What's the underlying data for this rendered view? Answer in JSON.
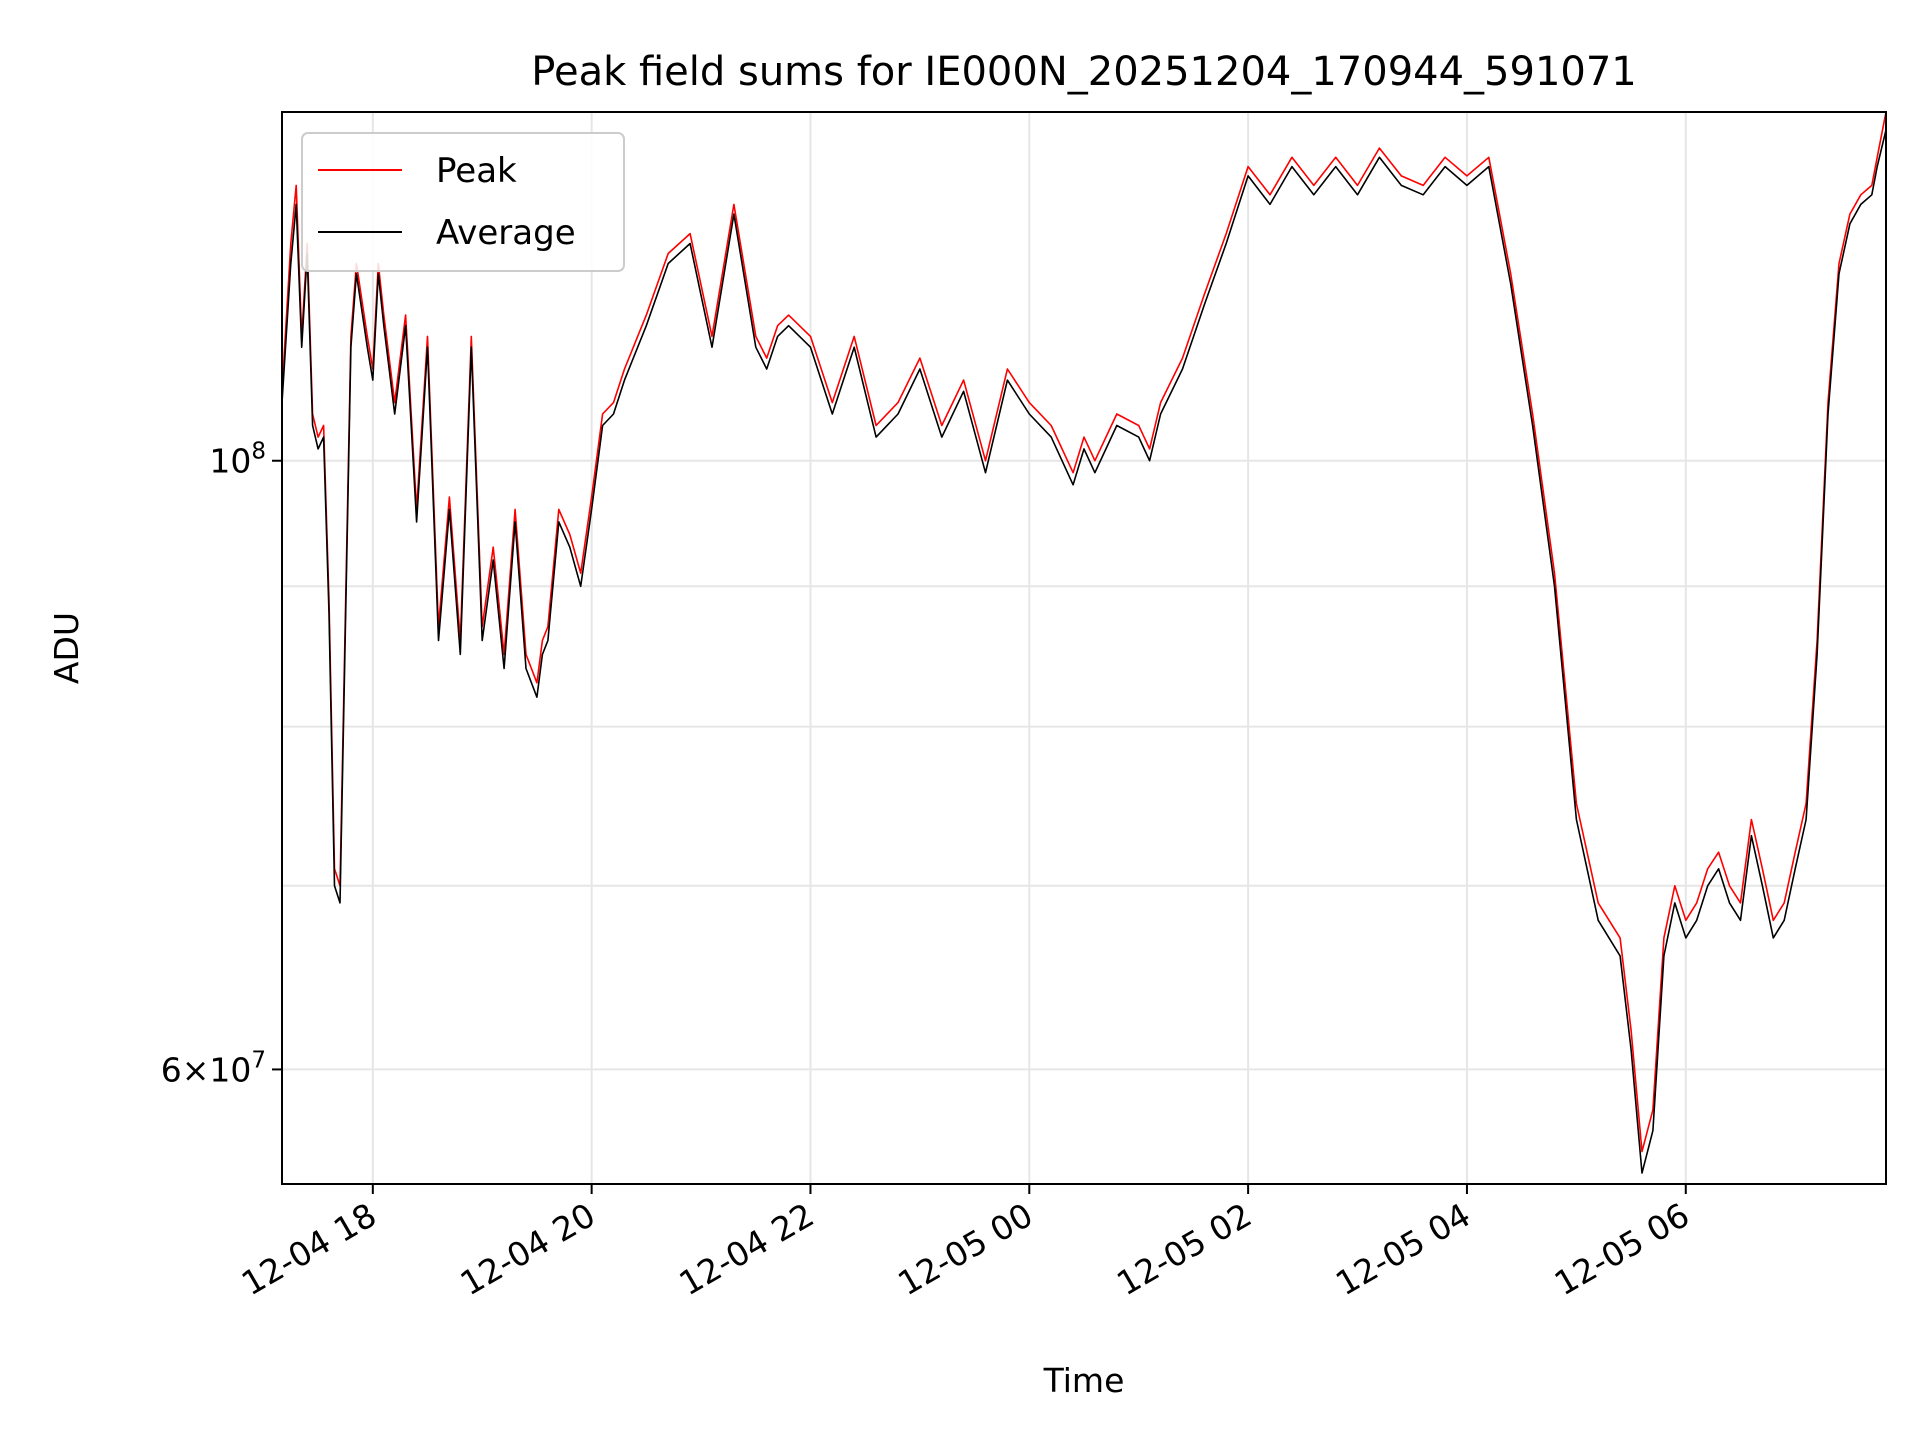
{
  "chart_data": {
    "type": "line",
    "title": "Peak field sums for IE000N_20251204_170944_591071",
    "xlabel": "Time",
    "ylabel": "ADU",
    "yscale": "log",
    "ylim": [
      54500000,
      134000000
    ],
    "xlim_hours": [
      -0.83,
      13.83
    ],
    "x_ticks": [
      {
        "hour": 0,
        "label": "12-04 18"
      },
      {
        "hour": 2,
        "label": "12-04 20"
      },
      {
        "hour": 4,
        "label": "12-04 22"
      },
      {
        "hour": 6,
        "label": "12-05 00"
      },
      {
        "hour": 8,
        "label": "12-05 02"
      },
      {
        "hour": 10,
        "label": "12-05 04"
      },
      {
        "hour": 12,
        "label": "12-05 06"
      }
    ],
    "y_ticks": [
      {
        "value": 100000000,
        "base": "10",
        "exp": "8"
      },
      {
        "value": 60000000,
        "base": "6×10",
        "exp": "7"
      }
    ],
    "y_minor_grid": [
      70000000,
      80000000,
      90000000
    ],
    "grid": true,
    "legend": {
      "position": "upper left",
      "entries": [
        "Peak",
        "Average"
      ]
    },
    "series_colors": {
      "Peak": "#ff0000",
      "Average": "#000000"
    },
    "series": [
      {
        "name": "Average",
        "color": "#000000",
        "x": [
          -0.83,
          -0.75,
          -0.7,
          -0.65,
          -0.6,
          -0.55,
          -0.5,
          -0.45,
          -0.4,
          -0.35,
          -0.3,
          -0.2,
          -0.15,
          -0.05,
          0.0,
          0.05,
          0.1,
          0.2,
          0.3,
          0.4,
          0.5,
          0.6,
          0.7,
          0.8,
          0.9,
          1.0,
          1.1,
          1.2,
          1.3,
          1.4,
          1.5,
          1.55,
          1.6,
          1.7,
          1.8,
          1.9,
          2.0,
          2.1,
          2.2,
          2.3,
          2.5,
          2.7,
          2.9,
          3.1,
          3.3,
          3.5,
          3.6,
          3.7,
          3.8,
          4.0,
          4.2,
          4.4,
          4.6,
          4.8,
          5.0,
          5.2,
          5.4,
          5.6,
          5.8,
          6.0,
          6.2,
          6.4,
          6.5,
          6.6,
          6.8,
          7.0,
          7.1,
          7.2,
          7.4,
          7.6,
          7.8,
          8.0,
          8.2,
          8.4,
          8.6,
          8.8,
          9.0,
          9.2,
          9.4,
          9.6,
          9.8,
          10.0,
          10.2,
          10.4,
          10.6,
          10.8,
          11.0,
          11.2,
          11.4,
          11.5,
          11.6,
          11.7,
          11.8,
          11.9,
          12.0,
          12.1,
          12.2,
          12.3,
          12.4,
          12.5,
          12.6,
          12.7,
          12.8,
          12.9,
          13.0,
          13.1,
          13.2,
          13.3,
          13.4,
          13.5,
          13.6,
          13.7,
          13.75,
          13.83
        ],
        "y": [
          105000000.0,
          118000000.0,
          124000000.0,
          110000000.0,
          119000000.0,
          103000000.0,
          101000000.0,
          102000000.0,
          88000000.0,
          70000000.0,
          69000000.0,
          110000000.0,
          117000000.0,
          110000000.0,
          107000000.0,
          117000000.0,
          112000000.0,
          104000000.0,
          112000000.0,
          95000000.0,
          110000000.0,
          86000000.0,
          96000000.0,
          85000000.0,
          110000000.0,
          86000000.0,
          92000000.0,
          84000000.0,
          95000000.0,
          84000000.0,
          82000000.0,
          85000000.0,
          86000000.0,
          95000000.0,
          93000000.0,
          90000000.0,
          96000000.0,
          103000000.0,
          104000000.0,
          107000000.0,
          112000000.0,
          118000000.0,
          120000000.0,
          110000000.0,
          123000000.0,
          110000000.0,
          108000000.0,
          111000000.0,
          112000000.0,
          110000000.0,
          104000000.0,
          110000000.0,
          102000000.0,
          104000000.0,
          108000000.0,
          102000000.0,
          106000000.0,
          99000000.0,
          107000000.0,
          104000000.0,
          102000000.0,
          98000000.0,
          101000000.0,
          99000000.0,
          103000000.0,
          102000000.0,
          100000000.0,
          104000000.0,
          108000000.0,
          114000000.0,
          120000000.0,
          127000000.0,
          124000000.0,
          128000000.0,
          125000000.0,
          128000000.0,
          125000000.0,
          129000000.0,
          126000000.0,
          125000000.0,
          128000000.0,
          126000000.0,
          128000000.0,
          116000000.0,
          103000000.0,
          90000000.0,
          74000000.0,
          68000000.0,
          66000000.0,
          61000000.0,
          55000000.0,
          57000000.0,
          66000000.0,
          69000000.0,
          67000000.0,
          68000000.0,
          70000000.0,
          71000000.0,
          69000000.0,
          68000000.0,
          73000000.0,
          70000000.0,
          67000000.0,
          68000000.0,
          71000000.0,
          74000000.0,
          85000000.0,
          104000000.0,
          117000000.0,
          122000000.0,
          124000000.0,
          125000000.0,
          128000000.0,
          132000000.0
        ]
      },
      {
        "name": "Peak",
        "color": "#ff0000",
        "x": [
          -0.83,
          -0.75,
          -0.7,
          -0.65,
          -0.6,
          -0.55,
          -0.5,
          -0.45,
          -0.4,
          -0.35,
          -0.3,
          -0.2,
          -0.15,
          -0.05,
          0.0,
          0.05,
          0.1,
          0.2,
          0.3,
          0.4,
          0.5,
          0.6,
          0.7,
          0.8,
          0.9,
          1.0,
          1.1,
          1.2,
          1.3,
          1.4,
          1.5,
          1.55,
          1.6,
          1.7,
          1.8,
          1.9,
          2.0,
          2.1,
          2.2,
          2.3,
          2.5,
          2.7,
          2.9,
          3.1,
          3.3,
          3.5,
          3.6,
          3.7,
          3.8,
          4.0,
          4.2,
          4.4,
          4.6,
          4.8,
          5.0,
          5.2,
          5.4,
          5.6,
          5.8,
          6.0,
          6.2,
          6.4,
          6.5,
          6.6,
          6.8,
          7.0,
          7.1,
          7.2,
          7.4,
          7.6,
          7.8,
          8.0,
          8.2,
          8.4,
          8.6,
          8.8,
          9.0,
          9.2,
          9.4,
          9.6,
          9.8,
          10.0,
          10.2,
          10.4,
          10.6,
          10.8,
          11.0,
          11.2,
          11.4,
          11.5,
          11.6,
          11.7,
          11.8,
          11.9,
          12.0,
          12.1,
          12.2,
          12.3,
          12.4,
          12.5,
          12.6,
          12.7,
          12.8,
          12.9,
          13.0,
          13.1,
          13.2,
          13.3,
          13.4,
          13.5,
          13.6,
          13.7,
          13.75,
          13.83
        ],
        "y": [
          106000000.0,
          120000000.0,
          126000000.0,
          111000000.0,
          120000000.0,
          104000000.0,
          102000000.0,
          103000000.0,
          89000000.0,
          71000000.0,
          70000000.0,
          111000000.0,
          118000000.0,
          111000000.0,
          108000000.0,
          118000000.0,
          113000000.0,
          105000000.0,
          113000000.0,
          96000000.0,
          111000000.0,
          87000000.0,
          97000000.0,
          86000000.0,
          111000000.0,
          87000000.0,
          93000000.0,
          85000000.0,
          96000000.0,
          85000000.0,
          83000000.0,
          86000000.0,
          87000000.0,
          96000000.0,
          94000000.0,
          91000000.0,
          97000000.0,
          104000000.0,
          105000000.0,
          108000000.0,
          113000000.0,
          119000000.0,
          121000000.0,
          111000000.0,
          124000000.0,
          111000000.0,
          109000000.0,
          112000000.0,
          113000000.0,
          111000000.0,
          105000000.0,
          111000000.0,
          103000000.0,
          105000000.0,
          109000000.0,
          103000000.0,
          107000000.0,
          100000000.0,
          108000000.0,
          105000000.0,
          103000000.0,
          99000000.0,
          102000000.0,
          100000000.0,
          104000000.0,
          103000000.0,
          101000000.0,
          105000000.0,
          109000000.0,
          115000000.0,
          121000000.0,
          128000000.0,
          125000000.0,
          129000000.0,
          126000000.0,
          129000000.0,
          126000000.0,
          130000000.0,
          127000000.0,
          126000000.0,
          129000000.0,
          127000000.0,
          129000000.0,
          117000000.0,
          104000000.0,
          91000000.0,
          75000000.0,
          69000000.0,
          67000000.0,
          62000000.0,
          56000000.0,
          58000000.0,
          67000000.0,
          70000000.0,
          68000000.0,
          69000000.0,
          71000000.0,
          72000000.0,
          70000000.0,
          69000000.0,
          74000000.0,
          71000000.0,
          68000000.0,
          69000000.0,
          72000000.0,
          75000000.0,
          86000000.0,
          105000000.0,
          118000000.0,
          123000000.0,
          125000000.0,
          126000000.0,
          129000000.0,
          134000000.0
        ]
      }
    ]
  }
}
